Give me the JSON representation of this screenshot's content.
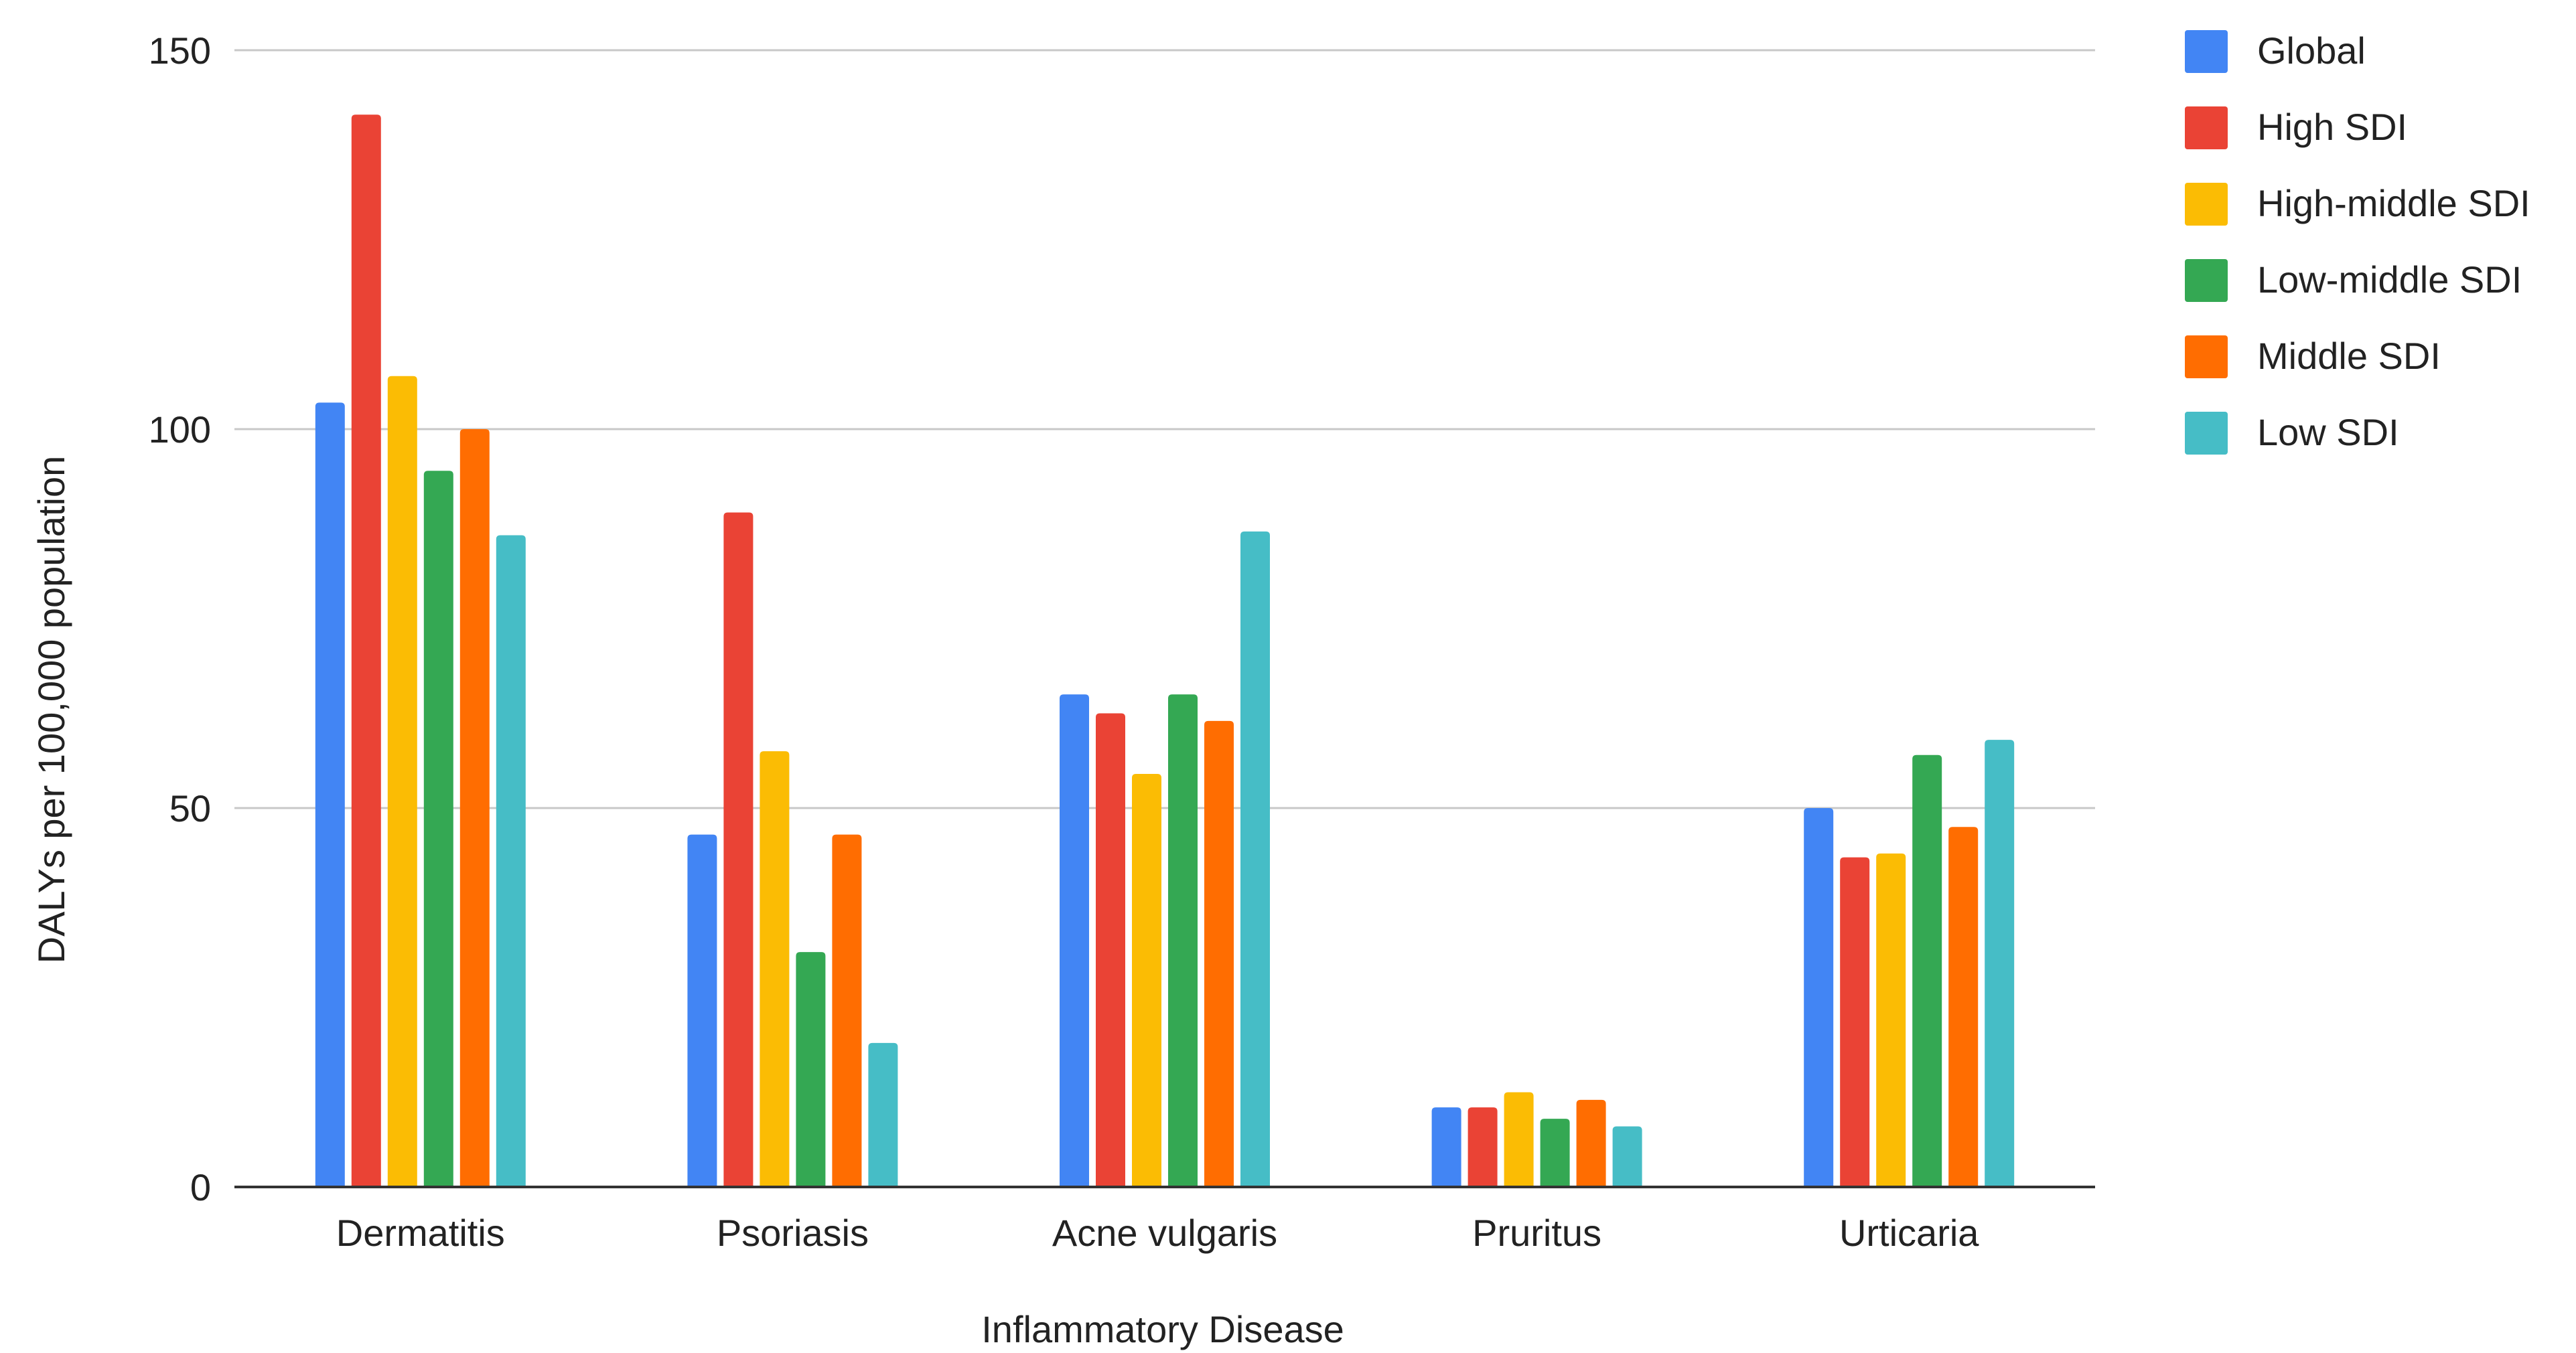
{
  "chart_data": {
    "type": "bar",
    "title": "",
    "xlabel": "Inflammatory Disease",
    "ylabel": "DALYs per 100,000 population",
    "ylim": [
      0,
      150
    ],
    "yticks": [
      0,
      50,
      100,
      150
    ],
    "grid": true,
    "legend_position": "right",
    "categories": [
      "Dermatitis",
      "Psoriasis",
      "Acne vulgaris",
      "Pruritus",
      "Urticaria"
    ],
    "series": [
      {
        "name": "Global",
        "color": "#4285F4",
        "values": [
          103.5,
          46.5,
          65.0,
          10.5,
          50.0
        ]
      },
      {
        "name": "High SDI",
        "color": "#EA4335",
        "values": [
          141.5,
          89.0,
          62.5,
          10.5,
          43.5
        ]
      },
      {
        "name": "High-middle SDI",
        "color": "#FBBC04",
        "values": [
          107.0,
          57.5,
          54.5,
          12.5,
          44.0
        ]
      },
      {
        "name": "Low-middle SDI",
        "color": "#34A853",
        "values": [
          94.5,
          31.0,
          65.0,
          9.0,
          57.0
        ]
      },
      {
        "name": "Middle SDI",
        "color": "#FF6D01",
        "values": [
          100.0,
          46.5,
          61.5,
          11.5,
          47.5
        ]
      },
      {
        "name": "Low SDI",
        "color": "#46BDC6",
        "values": [
          86.0,
          19.0,
          86.5,
          8.0,
          59.0
        ]
      }
    ]
  }
}
